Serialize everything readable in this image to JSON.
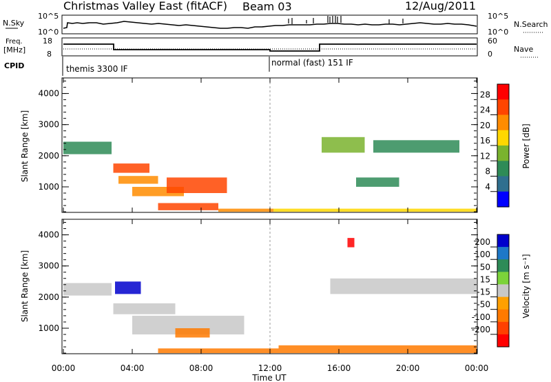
{
  "header": {
    "title": "Christmas Valley East (fitACF)",
    "beam": "Beam 03",
    "date": "12/Aug/2011"
  },
  "top_panels": {
    "nsky_label": "N.Sky",
    "nsky_ticks": [
      "10^5",
      "10^0"
    ],
    "nsearch_label": "N.Search",
    "nsearch_ticks": [
      "10^5",
      "10^0"
    ],
    "freq_label_1": "Freq.",
    "freq_label_2": "[MHz]",
    "freq_ticks": [
      "18",
      "8"
    ],
    "nave_label": "Nave",
    "nave_ticks": [
      "60",
      "0"
    ],
    "cpid_label": "CPID",
    "cpid_segments": [
      "themis 3300 IF",
      "normal (fast) 151 IF"
    ]
  },
  "colorbars": {
    "power": {
      "label": "Power [dB]",
      "ticks": [
        "28",
        "24",
        "20",
        "16",
        "12",
        "8",
        "4"
      ],
      "colors": [
        "#ff0000",
        "#ff4500",
        "#ff8c00",
        "#ffd700",
        "#7ab32e",
        "#2e8b57",
        "#2f6f8f",
        "#0000ff"
      ]
    },
    "velocity": {
      "label": "Velocity [m s⁻¹]",
      "ticks": [
        "200",
        "100",
        "50",
        "15",
        "-15",
        "-50",
        "-100",
        "-200"
      ],
      "colors": [
        "#0000cc",
        "#1e78c8",
        "#2e8b57",
        "#7cd33a",
        "#c8c8c8",
        "#ffa000",
        "#ff7a00",
        "#ff4000",
        "#ff0000"
      ]
    }
  },
  "chart_data": [
    {
      "type": "heatmap",
      "title": "",
      "xlabel": "",
      "ylabel": "Slant Range [km]",
      "x_ticks": [
        "00:00",
        "04:00",
        "08:00",
        "12:00",
        "16:00",
        "20:00",
        "00:00"
      ],
      "xlim": [
        0,
        24
      ],
      "y_ticks": [
        "1000",
        "2000",
        "3000",
        "4000"
      ],
      "ylim": [
        180,
        4500
      ],
      "color_scale": "Power [dB]",
      "cells": [
        {
          "x": [
            0.0,
            2.8
          ],
          "y": [
            2050,
            2450
          ],
          "value": 6
        },
        {
          "x": [
            2.9,
            5.0
          ],
          "y": [
            1450,
            1750
          ],
          "value": 22
        },
        {
          "x": [
            3.2,
            5.5
          ],
          "y": [
            1100,
            1350
          ],
          "value": 21
        },
        {
          "x": [
            4.0,
            7.0
          ],
          "y": [
            700,
            1000
          ],
          "value": 18
        },
        {
          "x": [
            6.0,
            9.5
          ],
          "y": [
            800,
            1300
          ],
          "value": 22
        },
        {
          "x": [
            5.5,
            9.0
          ],
          "y": [
            250,
            480
          ],
          "value": 24
        },
        {
          "x": [
            9.0,
            12.2
          ],
          "y": [
            200,
            300
          ],
          "value": 20
        },
        {
          "x": [
            12.2,
            24.0
          ],
          "y": [
            200,
            300
          ],
          "value": 16
        },
        {
          "x": [
            15.0,
            17.5
          ],
          "y": [
            2100,
            2600
          ],
          "value": 10
        },
        {
          "x": [
            17.0,
            19.5
          ],
          "y": [
            1000,
            1300
          ],
          "value": 7
        },
        {
          "x": [
            18.0,
            23.0
          ],
          "y": [
            2100,
            2500
          ],
          "value": 7
        }
      ]
    },
    {
      "type": "heatmap",
      "title": "",
      "xlabel": "Time UT",
      "ylabel": "Slant Range [km]",
      "x_ticks": [
        "00:00",
        "04:00",
        "08:00",
        "12:00",
        "16:00",
        "20:00",
        "00:00"
      ],
      "xlim": [
        0,
        24
      ],
      "y_ticks": [
        "1000",
        "2000",
        "3000",
        "4000"
      ],
      "ylim": [
        180,
        4500
      ],
      "color_scale": "Velocity [m s⁻¹]",
      "cells": [
        {
          "x": [
            0.0,
            2.8
          ],
          "y": [
            2050,
            2450
          ],
          "value": 0
        },
        {
          "x": [
            3.0,
            4.5
          ],
          "y": [
            2100,
            2500
          ],
          "value": 180
        },
        {
          "x": [
            2.9,
            6.5
          ],
          "y": [
            1450,
            1800
          ],
          "value": 0
        },
        {
          "x": [
            4.0,
            10.5
          ],
          "y": [
            800,
            1400
          ],
          "value": 0
        },
        {
          "x": [
            6.5,
            8.5
          ],
          "y": [
            700,
            1000
          ],
          "value": -40
        },
        {
          "x": [
            5.5,
            12.5
          ],
          "y": [
            200,
            350
          ],
          "value": -40
        },
        {
          "x": [
            12.5,
            24.0
          ],
          "y": [
            200,
            450
          ],
          "value": -40
        },
        {
          "x": [
            15.5,
            24.0
          ],
          "y": [
            2100,
            2600
          ],
          "value": 0
        },
        {
          "x": [
            16.5,
            16.9
          ],
          "y": [
            3600,
            3900
          ],
          "value": -220
        }
      ]
    }
  ]
}
